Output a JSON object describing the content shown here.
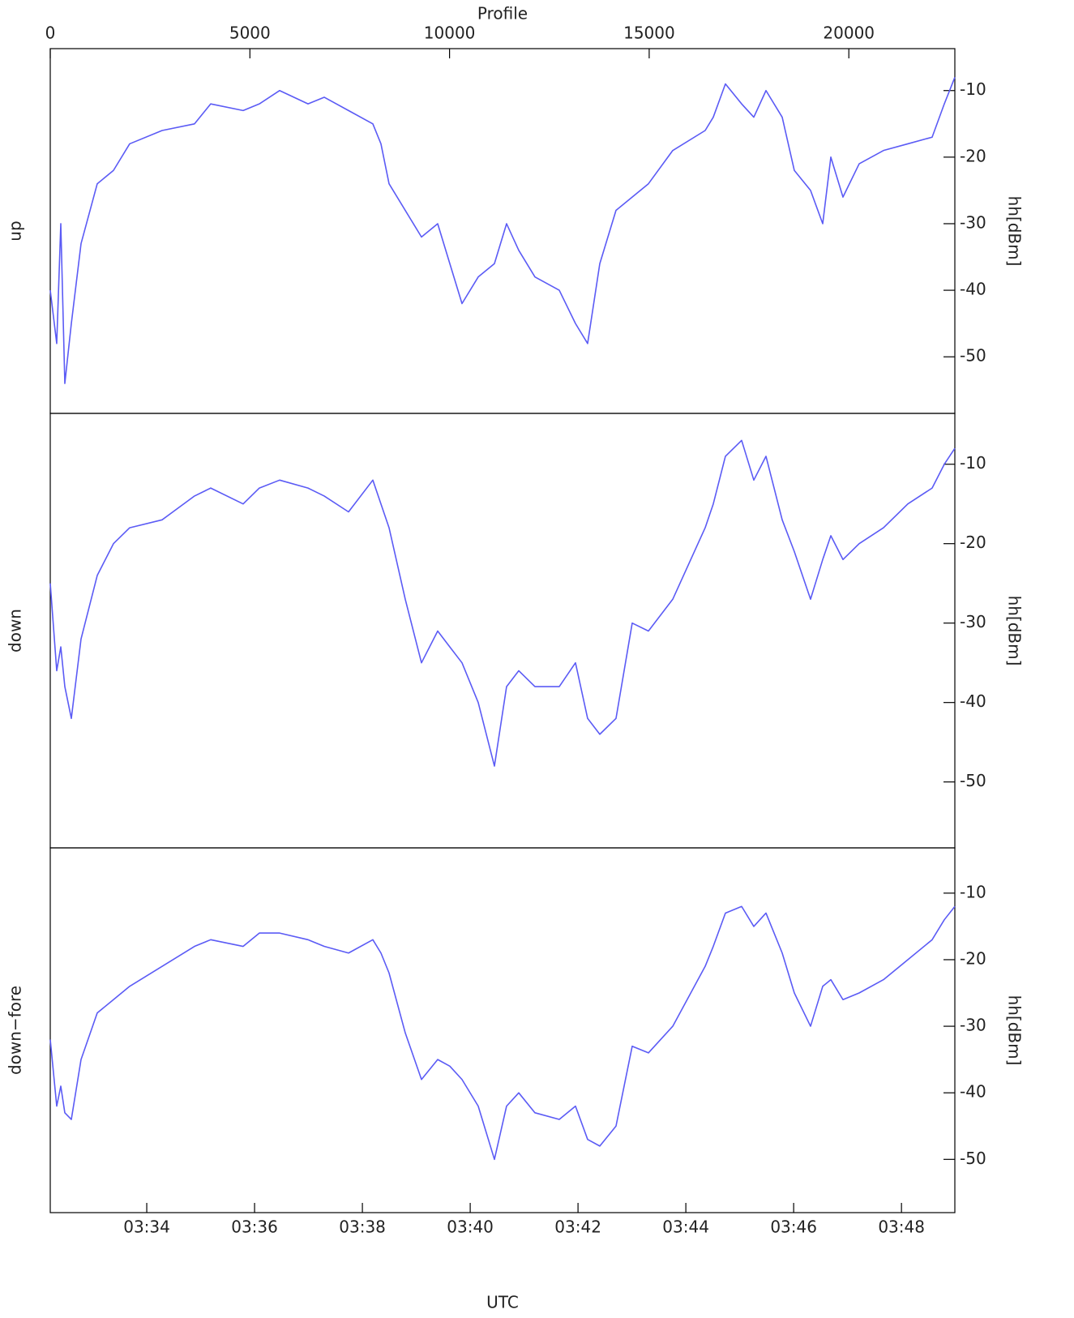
{
  "profile_axis": {
    "label": "Profile",
    "xlim": [
      0,
      22655
    ],
    "xticks": [
      0,
      5000,
      10000,
      15000,
      20000
    ]
  },
  "time_axis": {
    "label": "UTC",
    "xlim": [
      32.21,
      48.99
    ],
    "xticks": [
      {
        "value": 34,
        "label": "03:34"
      },
      {
        "value": 36,
        "label": "03:36"
      },
      {
        "value": 38,
        "label": "03:38"
      },
      {
        "value": 40,
        "label": "03:40"
      },
      {
        "value": 42,
        "label": "03:42"
      },
      {
        "value": 44,
        "label": "03:44"
      },
      {
        "value": 46,
        "label": "03:46"
      },
      {
        "value": 48,
        "label": "03:48"
      }
    ]
  },
  "chart_data": [
    {
      "type": "line",
      "ylabel": "up",
      "y2label": "hh[dBm]",
      "xlim": [
        0,
        22655
      ],
      "ylim": [
        -58.5,
        -3.7
      ],
      "yticks": [
        -10,
        -20,
        -30,
        -40,
        -50
      ],
      "x": [
        0,
        162,
        264,
        365,
        528,
        771,
        1177,
        1583,
        1989,
        2801,
        3613,
        4019,
        4831,
        5237,
        5745,
        6455,
        6861,
        7470,
        8079,
        8282,
        8485,
        8891,
        9297,
        9703,
        10007,
        10312,
        10718,
        11124,
        11428,
        11733,
        12139,
        12748,
        13154,
        13458,
        13763,
        14169,
        14575,
        14981,
        15590,
        16402,
        16605,
        16909,
        17315,
        17620,
        17925,
        18331,
        18635,
        19041,
        19346,
        19549,
        19853,
        20259,
        20868,
        21477,
        22086,
        22391,
        22655
      ],
      "series": [
        {
          "color": "#5b5bf5",
          "values": [
            -40,
            -48,
            -30,
            -54,
            -45,
            -33,
            -24,
            -22,
            -18,
            -16,
            -15,
            -12,
            -13,
            -12,
            -10,
            -12,
            -11,
            -13,
            -15,
            -18,
            -24,
            -28,
            -32,
            -30,
            -36,
            -42,
            -38,
            -36,
            -30,
            -34,
            -38,
            -40,
            -45,
            -48,
            -36,
            -28,
            -26,
            -24,
            -19,
            -16,
            -14,
            -9,
            -12,
            -14,
            -10,
            -14,
            -22,
            -25,
            -30,
            -20,
            -26,
            -21,
            -19,
            -18,
            -17,
            -12,
            -8
          ]
        }
      ]
    },
    {
      "type": "line",
      "ylabel": "down",
      "y2label": "hh[dBm]",
      "xlim": [
        0,
        22655
      ],
      "ylim": [
        -58.3,
        -3.6
      ],
      "yticks": [
        -10,
        -20,
        -30,
        -40,
        -50
      ],
      "x": [
        0,
        162,
        264,
        365,
        528,
        771,
        1177,
        1583,
        1989,
        2801,
        3613,
        4019,
        4831,
        5237,
        5745,
        6455,
        6861,
        7470,
        8079,
        8282,
        8485,
        8891,
        9297,
        9703,
        10007,
        10312,
        10718,
        11124,
        11428,
        11733,
        12139,
        12748,
        13154,
        13458,
        13763,
        14169,
        14575,
        14981,
        15590,
        16402,
        16605,
        16909,
        17315,
        17620,
        17925,
        18331,
        18635,
        19041,
        19346,
        19549,
        19853,
        20259,
        20868,
        21477,
        22086,
        22391,
        22655
      ],
      "series": [
        {
          "color": "#5b5bf5",
          "values": [
            -25,
            -36,
            -33,
            -38,
            -42,
            -32,
            -24,
            -20,
            -18,
            -17,
            -14,
            -13,
            -15,
            -13,
            -12,
            -13,
            -14,
            -16,
            -12,
            -15,
            -18,
            -27,
            -35,
            -31,
            -33,
            -35,
            -40,
            -48,
            -38,
            -36,
            -38,
            -38,
            -35,
            -42,
            -44,
            -42,
            -30,
            -31,
            -27,
            -18,
            -15,
            -9,
            -7,
            -12,
            -9,
            -17,
            -21,
            -27,
            -22,
            -19,
            -22,
            -20,
            -18,
            -15,
            -13,
            -10,
            -8
          ]
        }
      ]
    },
    {
      "type": "line",
      "ylabel": "down−fore",
      "y2label": "hh[dBm]",
      "xlim": [
        0,
        22655
      ],
      "ylim": [
        -58,
        -3.2
      ],
      "yticks": [
        -10,
        -20,
        -30,
        -40,
        -50
      ],
      "x": [
        0,
        162,
        264,
        365,
        528,
        771,
        1177,
        1583,
        1989,
        2801,
        3613,
        4019,
        4831,
        5237,
        5745,
        6455,
        6861,
        7470,
        8079,
        8282,
        8485,
        8891,
        9297,
        9703,
        10007,
        10312,
        10718,
        11124,
        11428,
        11733,
        12139,
        12748,
        13154,
        13458,
        13763,
        14169,
        14575,
        14981,
        15590,
        16402,
        16605,
        16909,
        17315,
        17620,
        17925,
        18331,
        18635,
        19041,
        19346,
        19549,
        19853,
        20259,
        20868,
        21477,
        22086,
        22391,
        22655
      ],
      "series": [
        {
          "color": "#5b5bf5",
          "values": [
            -32,
            -42,
            -39,
            -43,
            -44,
            -35,
            -28,
            -26,
            -24,
            -21,
            -18,
            -17,
            -18,
            -16,
            -16,
            -17,
            -18,
            -19,
            -17,
            -19,
            -22,
            -31,
            -38,
            -35,
            -36,
            -38,
            -42,
            -50,
            -42,
            -40,
            -43,
            -44,
            -42,
            -47,
            -48,
            -45,
            -33,
            -34,
            -30,
            -21,
            -18,
            -13,
            -12,
            -15,
            -13,
            -19,
            -25,
            -30,
            -24,
            -23,
            -26,
            -25,
            -23,
            -20,
            -17,
            -14,
            -12
          ]
        }
      ]
    }
  ]
}
